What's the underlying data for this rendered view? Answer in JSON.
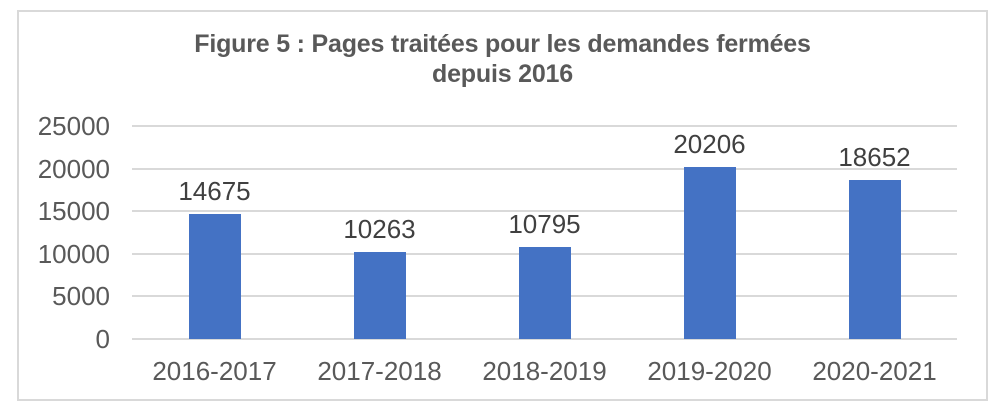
{
  "chart_data": {
    "type": "bar",
    "title": "Figure 5 : Pages traitées pour les demandes fermées depuis 2016",
    "title_lines": [
      "Figure 5 : Pages traitées pour les demandes fermées",
      "depuis 2016"
    ],
    "categories": [
      "2016-2017",
      "2017-2018",
      "2018-2019",
      "2019-2020",
      "2020-2021"
    ],
    "values": [
      14675,
      10263,
      10795,
      20206,
      18652
    ],
    "data_labels": [
      "14675",
      "10263",
      "10795",
      "20206",
      "18652"
    ],
    "xlabel": "",
    "ylabel": "",
    "ylim": [
      0,
      25000
    ],
    "yticks": [
      0,
      5000,
      10000,
      15000,
      20000,
      25000
    ],
    "ytick_labels": [
      "0",
      "5000",
      "10000",
      "15000",
      "20000",
      "25000"
    ],
    "grid": true,
    "legend": "none",
    "colors": {
      "bar": "#4472C4",
      "gridline": "#D9D9D9",
      "frame_border": "#D9D9D9",
      "title_text": "#595959",
      "axis_text": "#595959",
      "data_label_text": "#404040",
      "background": "#FFFFFF"
    }
  }
}
